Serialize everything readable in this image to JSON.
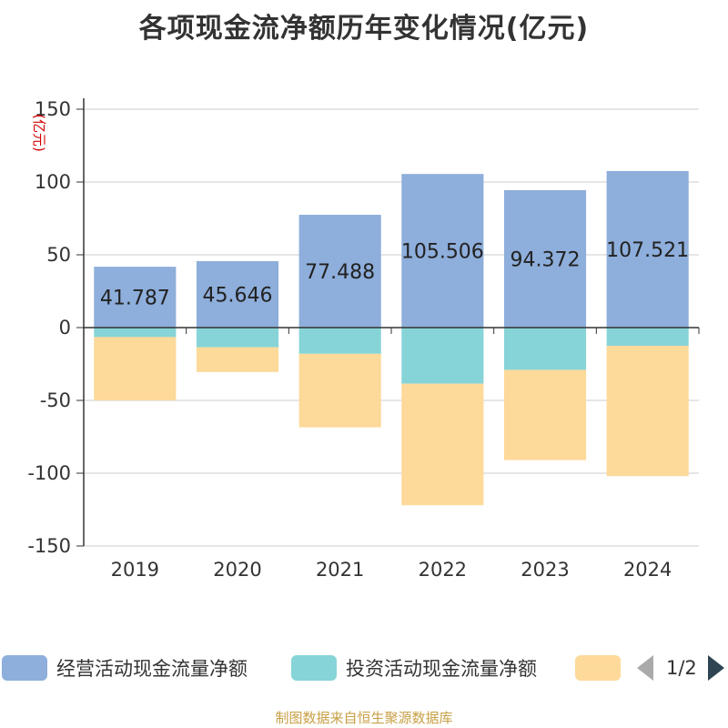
{
  "chart_data": {
    "type": "bar",
    "stacked": true,
    "title": "各项现金流净额历年变化情况(亿元)",
    "ylabel": "(亿元)",
    "ylim": [
      -150,
      150
    ],
    "yticks": [
      150,
      100,
      50,
      0,
      -50,
      -100,
      -150
    ],
    "categories": [
      "2019",
      "2020",
      "2021",
      "2022",
      "2023",
      "2024"
    ],
    "series": [
      {
        "name": "经营活动现金流量净额",
        "color": "#8eaedb",
        "values": [
          41.787,
          45.646,
          77.488,
          105.506,
          94.372,
          107.521
        ],
        "labels": [
          "41.787",
          "45.646",
          "77.488",
          "105.506",
          "94.372",
          "107.521"
        ]
      },
      {
        "name": "投资活动现金流量净额",
        "color": "#86d4d7",
        "values": [
          -6.5,
          -13.5,
          -18.0,
          -38.5,
          -29.0,
          -12.5
        ]
      },
      {
        "name": "",
        "color": "#fdd99a",
        "values": [
          -43.5,
          -17.0,
          -50.5,
          -83.5,
          -62.0,
          -89.5
        ]
      }
    ],
    "legend": {
      "position": "bottom",
      "page": "1/2"
    }
  },
  "source": "制图数据来自恒生聚源数据库"
}
